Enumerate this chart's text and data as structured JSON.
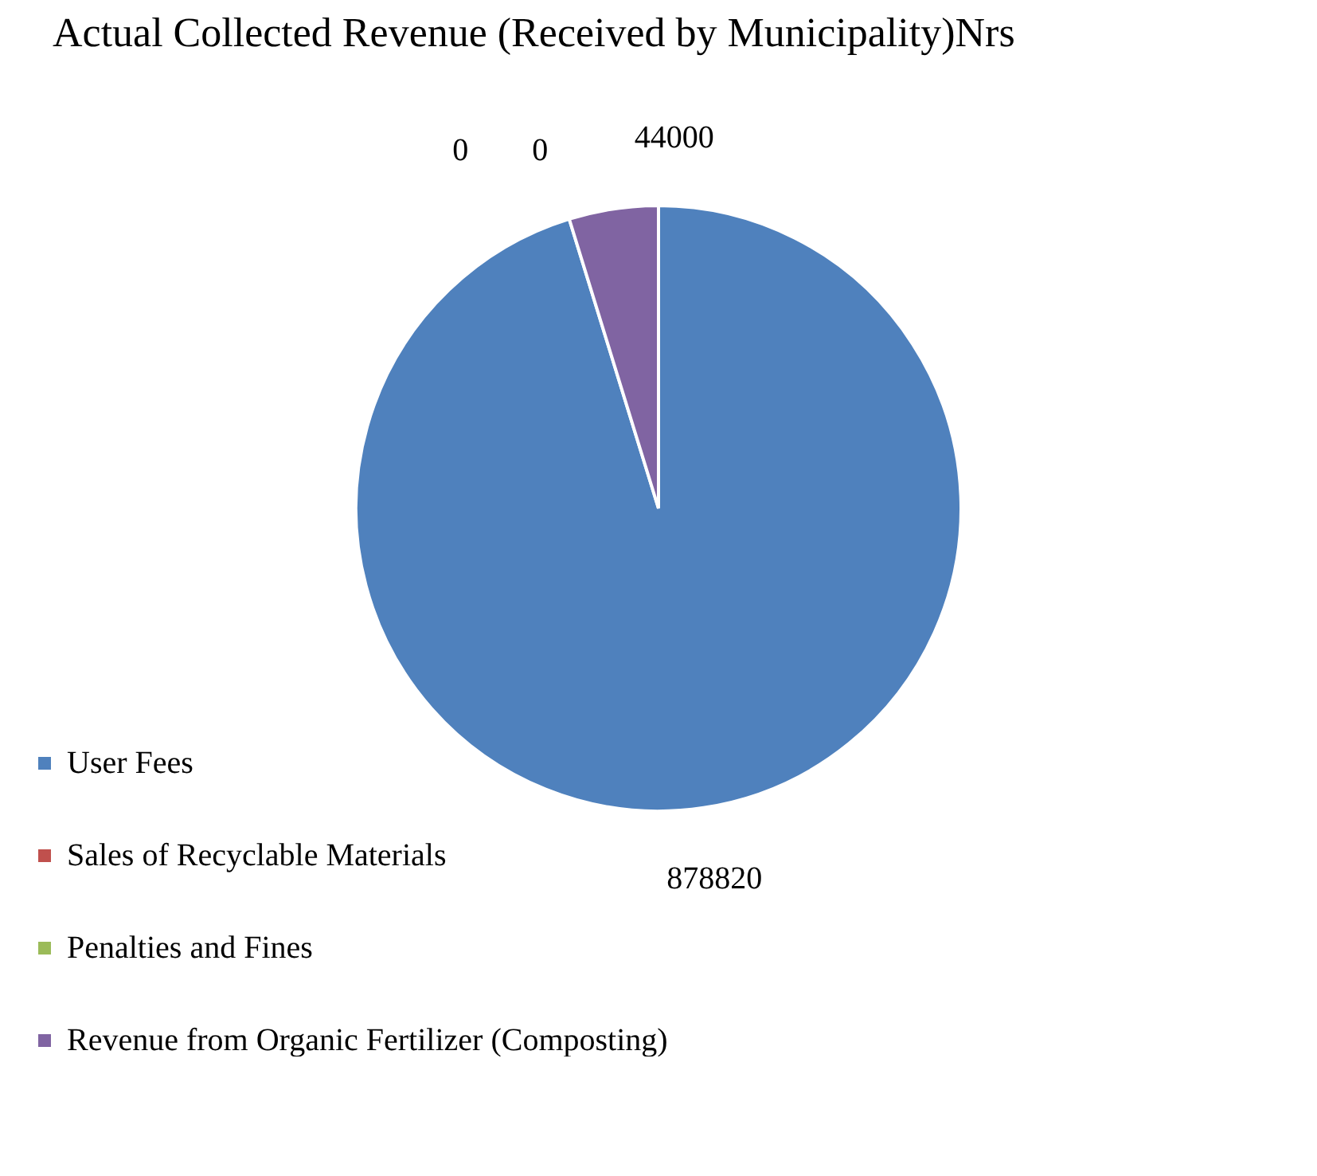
{
  "chart_data": {
    "type": "pie",
    "title": "Actual Collected Revenue (Received by Municipality)Nrs",
    "categories": [
      "User Fees",
      "Sales of Recyclable Materials",
      "Penalties and Fines",
      "Revenue from Organic Fertilizer (Composting)"
    ],
    "values": [
      878820,
      0,
      0,
      44000
    ],
    "colors": [
      "#4f81bd",
      "#c0504d",
      "#9bbb59",
      "#8064a2"
    ],
    "value_labels": [
      "878820",
      "0",
      "0",
      "44000"
    ],
    "legend": "left"
  }
}
